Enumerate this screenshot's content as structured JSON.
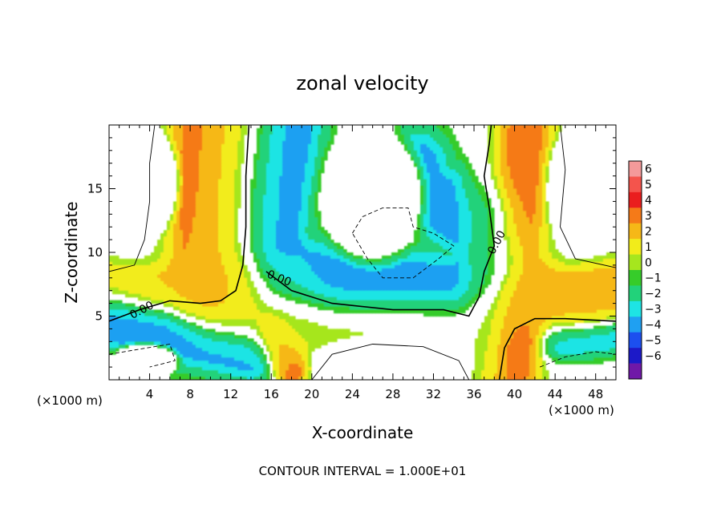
{
  "chart_data": {
    "type": "heatmap",
    "title": "zonal velocity",
    "xlabel": "X-coordinate",
    "ylabel": "Z-coordinate",
    "x_unit": "(×1000 m)",
    "y_unit": "(×1000 m)",
    "xlim": [
      0,
      50
    ],
    "ylim": [
      0,
      20
    ],
    "x_ticks": [
      4,
      8,
      12,
      16,
      20,
      24,
      28,
      32,
      36,
      40,
      44,
      48
    ],
    "y_ticks": [
      5,
      10,
      15
    ],
    "colorbar": {
      "levels": [
        6,
        5,
        4,
        3,
        2,
        1,
        0,
        -1,
        -2,
        -3,
        -4,
        -5,
        -6
      ],
      "labels": [
        "6",
        "5",
        "4",
        "3",
        "2",
        "1",
        "0",
        "−1",
        "−2",
        "−3",
        "−4",
        "−5",
        "−6"
      ],
      "colors": [
        "#f49a9a",
        "#f4544c",
        "#ea1e1e",
        "#f57a18",
        "#f6b817",
        "#f2ec1a",
        "#a6e61e",
        "#36cc2a",
        "#22d27a",
        "#1ee4e4",
        "#1fa0f2",
        "#1c4fef",
        "#1c19c8",
        "#7018a8"
      ]
    },
    "contour_labels": [
      "0.00",
      "0.00",
      "0.00"
    ],
    "footer": "CONTOUR INTERVAL = 1.000E+01",
    "ridges": [
      {
        "name": "left-positive-plume",
        "points": [
          [
            9.5,
            20
          ],
          [
            9.0,
            15
          ],
          [
            9.5,
            10
          ],
          [
            10.5,
            7.5
          ]
        ],
        "value": 4,
        "halfwidth": 2.3
      },
      {
        "name": "central-neutral-column",
        "points": [
          [
            13.0,
            20
          ],
          [
            12.5,
            15
          ],
          [
            12.0,
            10
          ],
          [
            13.0,
            7
          ],
          [
            15.0,
            6
          ],
          [
            17.0,
            5.5
          ]
        ],
        "value": 0.5,
        "halfwidth": 2.5
      },
      {
        "name": "central-negative-jet",
        "points": [
          [
            18.0,
            20
          ],
          [
            17.0,
            15
          ],
          [
            16.5,
            11
          ],
          [
            18.0,
            8.5
          ],
          [
            22.0,
            7.5
          ],
          [
            28.0,
            7.2
          ],
          [
            34.0,
            7.0
          ],
          [
            36.0,
            7.5
          ],
          [
            37.5,
            9.0
          ],
          [
            36.5,
            12.0
          ],
          [
            34.0,
            13.0
          ],
          [
            31.0,
            15.0
          ],
          [
            30.5,
            16.5
          ]
        ],
        "value": -4,
        "halfwidth": 2.2
      },
      {
        "name": "low-positive-band",
        "points": [
          [
            0,
            7.5
          ],
          [
            6,
            7.0
          ],
          [
            10,
            6.0
          ],
          [
            14,
            5.0
          ],
          [
            18,
            4.5
          ],
          [
            24,
            4.5
          ],
          [
            30,
            4.5
          ],
          [
            35,
            4.5
          ],
          [
            38,
            5.5
          ],
          [
            41,
            6.0
          ],
          [
            46,
            6.0
          ],
          [
            50,
            6.5
          ]
        ],
        "value": 2,
        "halfwidth": 1.3
      },
      {
        "name": "bottom-left-negative",
        "points": [
          [
            0,
            4.5
          ],
          [
            4,
            3.5
          ],
          [
            8,
            3.0
          ],
          [
            11,
            2.5
          ],
          [
            14,
            2.0
          ]
        ],
        "value": -4,
        "halfwidth": 1.5
      },
      {
        "name": "right-neutral-column",
        "points": [
          [
            37.0,
            20
          ],
          [
            36.5,
            15
          ],
          [
            37.0,
            10
          ],
          [
            37.0,
            6
          ],
          [
            37.0,
            2
          ],
          [
            37.0,
            0
          ]
        ],
        "value": 0,
        "halfwidth": 1.3
      },
      {
        "name": "right-positive-plume",
        "points": [
          [
            41.0,
            20
          ],
          [
            40.5,
            15
          ],
          [
            40.0,
            10
          ],
          [
            40.0,
            7
          ],
          [
            40.0,
            4
          ],
          [
            39.5,
            0
          ]
        ],
        "value": 4,
        "halfwidth": 1.9
      },
      {
        "name": "right-lower-positive",
        "points": [
          [
            42,
            6.5
          ],
          [
            46,
            6.5
          ],
          [
            50,
            7.0
          ]
        ],
        "value": 3,
        "halfwidth": 1.5
      },
      {
        "name": "bottom-right-negative",
        "points": [
          [
            44,
            3
          ],
          [
            48,
            3.2
          ],
          [
            50,
            3.5
          ]
        ],
        "value": -3,
        "halfwidth": 1.0
      },
      {
        "name": "mid-bottom-positive",
        "points": [
          [
            16,
            3.5
          ],
          [
            17,
            2.0
          ],
          [
            18,
            0.8
          ]
        ],
        "value": 4,
        "halfwidth": 1.0
      }
    ],
    "blanks": [
      {
        "name": "upper-left-calm",
        "cx": 3.5,
        "cy": 15.5,
        "rx": 4.0,
        "ry": 5.2
      },
      {
        "name": "upper-middle-calm",
        "cx": 26.0,
        "cy": 14.5,
        "rx": 6.0,
        "ry": 6.2
      },
      {
        "name": "upper-right-calm",
        "cx": 46.5,
        "cy": 15.0,
        "rx": 4.0,
        "ry": 5.8
      },
      {
        "name": "bottom-left-calm",
        "cx": 3.5,
        "cy": 1.5,
        "rx": 4.0,
        "ry": 1.6
      },
      {
        "name": "bottom-middle-calm",
        "cx": 28.0,
        "cy": 1.5,
        "rx": 8.5,
        "ry": 2.3
      }
    ],
    "contour_lines": [
      {
        "name": "zero-contour-left",
        "style": "solid",
        "weight": "bold",
        "points": [
          [
            0,
            4.6
          ],
          [
            3,
            5.5
          ],
          [
            6,
            6.2
          ],
          [
            9,
            6.0
          ],
          [
            11,
            6.2
          ],
          [
            12.5,
            7.0
          ],
          [
            13.2,
            9.0
          ],
          [
            13.5,
            12.0
          ],
          [
            13.5,
            16.0
          ],
          [
            13.8,
            20.0
          ]
        ]
      },
      {
        "name": "zero-contour-jet",
        "style": "solid",
        "weight": "bold",
        "points": [
          [
            15.5,
            8.5
          ],
          [
            18.0,
            7.0
          ],
          [
            22.0,
            6.0
          ],
          [
            28.0,
            5.5
          ],
          [
            33.0,
            5.5
          ],
          [
            35.5,
            5.0
          ],
          [
            36.5,
            6.5
          ],
          [
            37.0,
            8.5
          ],
          [
            38.0,
            10.5
          ],
          [
            37.5,
            13.5
          ],
          [
            37.0,
            16.0
          ],
          [
            37.5,
            18.5
          ],
          [
            37.7,
            20.0
          ]
        ]
      },
      {
        "name": "zero-contour-right",
        "style": "solid",
        "weight": "bold",
        "points": [
          [
            38.5,
            0
          ],
          [
            39.0,
            2.5
          ],
          [
            40.0,
            4.0
          ],
          [
            42.0,
            4.8
          ],
          [
            45.0,
            4.8
          ],
          [
            50.0,
            4.6
          ]
        ]
      },
      {
        "name": "thin-contour-upper-left",
        "style": "solid",
        "weight": "thin",
        "points": [
          [
            0,
            8.5
          ],
          [
            2.5,
            9.0
          ],
          [
            3.5,
            11.0
          ],
          [
            4.0,
            14.0
          ],
          [
            4.0,
            17.0
          ],
          [
            4.5,
            20.0
          ]
        ]
      },
      {
        "name": "thin-contour-upper-right",
        "style": "solid",
        "weight": "thin",
        "points": [
          [
            44.5,
            20.0
          ],
          [
            45.0,
            16.5
          ],
          [
            44.5,
            12.0
          ],
          [
            46.0,
            9.5
          ],
          [
            50.0,
            8.8
          ]
        ]
      },
      {
        "name": "thin-contour-bottom",
        "style": "solid",
        "weight": "thin",
        "points": [
          [
            20.0,
            0
          ],
          [
            22.0,
            2.0
          ],
          [
            26.0,
            2.8
          ],
          [
            31.0,
            2.6
          ],
          [
            34.5,
            1.5
          ],
          [
            35.5,
            0
          ]
        ]
      },
      {
        "name": "dashed-contour-center",
        "style": "dashed",
        "weight": "thin",
        "points": [
          [
            24.0,
            11.5
          ],
          [
            25.0,
            12.8
          ],
          [
            27.0,
            13.5
          ],
          [
            29.5,
            13.5
          ],
          [
            30.0,
            12.0
          ],
          [
            32.0,
            11.5
          ],
          [
            34.0,
            10.5
          ],
          [
            32.5,
            9.5
          ],
          [
            30.0,
            8.0
          ],
          [
            27.0,
            8.0
          ],
          [
            25.5,
            9.5
          ],
          [
            24.0,
            11.5
          ]
        ]
      },
      {
        "name": "dashed-contour-bottom-left",
        "style": "dashed",
        "weight": "thin",
        "points": [
          [
            0,
            2.0
          ],
          [
            3.0,
            2.4
          ],
          [
            6.0,
            2.8
          ],
          [
            6.5,
            1.5
          ],
          [
            4.0,
            1.0
          ]
        ]
      },
      {
        "name": "dashed-contour-bottom-right",
        "style": "dashed",
        "weight": "thin",
        "points": [
          [
            42.5,
            1.0
          ],
          [
            45.0,
            1.8
          ],
          [
            48.0,
            2.2
          ],
          [
            50.0,
            2.0
          ]
        ]
      }
    ]
  }
}
